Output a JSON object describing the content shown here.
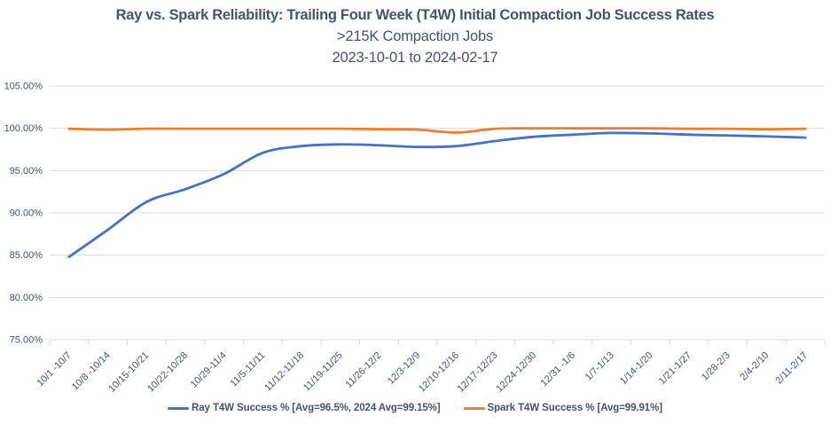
{
  "colors": {
    "ray": "#4472C4",
    "spark": "#ED7D31",
    "grid": "#D9D9D9",
    "text": "#44546A",
    "background": "#FFFFFF"
  },
  "chart_data": {
    "type": "line",
    "title": "Ray vs. Spark Reliability: Trailing Four Week (T4W) Initial Compaction Job Success Rates",
    "subtitle": ">215K Compaction Jobs",
    "date_range": "2023-10-01 to 2024-02-17",
    "smoothed": true,
    "grid": true,
    "legend_position": "bottom",
    "ylim": [
      75,
      105
    ],
    "yticks": [
      {
        "value": 75,
        "label": "75.00%"
      },
      {
        "value": 80,
        "label": "80.00%"
      },
      {
        "value": 85,
        "label": "85.00%"
      },
      {
        "value": 90,
        "label": "90.00%"
      },
      {
        "value": 95,
        "label": "95.00%"
      },
      {
        "value": 100,
        "label": "100.00%"
      },
      {
        "value": 105,
        "label": "105.00%"
      }
    ],
    "categories": [
      "10/1 -10/7",
      "10/8 -10/14",
      "10/15-10/21",
      "10/22-10/28",
      "10/29-11/4",
      "11/5-11/11",
      "11/12-11/18",
      "11/19-11/25",
      "11/26-12/2",
      "12/3-12/9",
      "12/10-12/16",
      "12/17-12/23",
      "12/24-12/30",
      "12/31 -1/6",
      "1/7-1/13",
      "1/14-1/20",
      "1/21-1/27",
      "1/28-2/3",
      "2/4-2/10",
      "2/11-2/17"
    ],
    "series": [
      {
        "name": "Ray T4W Success %",
        "legend_label": "Ray T4W Success % [Avg=96.5%, 2024 Avg=99.15%]",
        "color": "#4472C4",
        "values": [
          84.8,
          88.0,
          91.3,
          92.8,
          94.6,
          97.1,
          97.9,
          98.1,
          98.0,
          97.8,
          97.9,
          98.5,
          99.0,
          99.25,
          99.45,
          99.4,
          99.25,
          99.15,
          99.05,
          98.9
        ]
      },
      {
        "name": "Spark T4W Success %",
        "legend_label": "Spark T4W Success % [Avg=99.91%]",
        "color": "#ED7D31",
        "values": [
          99.95,
          99.85,
          99.95,
          99.95,
          99.95,
          99.95,
          99.95,
          99.95,
          99.9,
          99.85,
          99.5,
          99.95,
          100.0,
          100.0,
          100.0,
          100.0,
          99.95,
          99.95,
          99.9,
          99.95
        ]
      }
    ]
  }
}
